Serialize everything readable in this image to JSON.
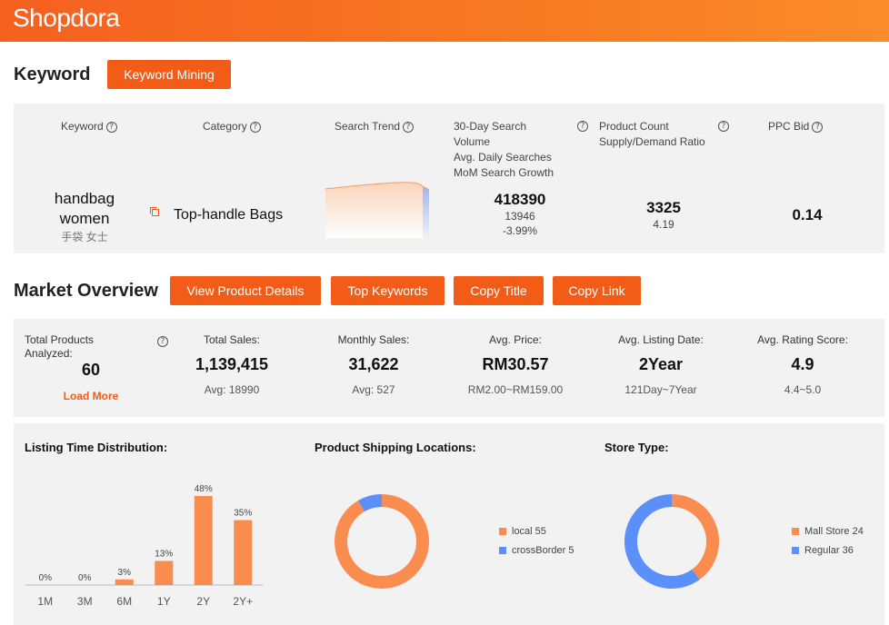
{
  "app": {
    "logo_text": "Shopdora"
  },
  "keyword_section": {
    "title": "Keyword",
    "mining_button": "Keyword Mining",
    "headers": {
      "keyword": "Keyword",
      "category": "Category",
      "search_trend": "Search Trend",
      "volume_line1": "30-Day Search",
      "volume_line2": "Volume",
      "volume_line3": "Avg. Daily Searches",
      "volume_line4": "MoM Search Growth",
      "product_count": "Product Count",
      "supply_demand": "Supply/Demand Ratio",
      "ppc_bid": "PPC Bid"
    },
    "row": {
      "keyword_line1": "handbag",
      "keyword_line2": "women",
      "keyword_translation": "手袋 女士",
      "category": "Top-handle Bags",
      "search_volume": "418390",
      "avg_daily_searches": "13946",
      "mom_growth": "-3.99%",
      "product_count": "3325",
      "supply_demand_ratio": "4.19",
      "ppc_bid": "0.14"
    }
  },
  "market_overview": {
    "title": "Market Overview",
    "buttons": {
      "view_details": "View Product Details",
      "top_keywords": "Top Keywords",
      "copy_title": "Copy Title",
      "copy_link": "Copy Link"
    },
    "total_products": {
      "label_line1": "Total Products",
      "label_line2": "Analyzed:",
      "value": "60",
      "load_more": "Load More"
    },
    "stats": [
      {
        "label": "Total Sales:",
        "value": "1,139,415",
        "sub": "Avg: 18990"
      },
      {
        "label": "Monthly Sales:",
        "value": "31,622",
        "sub": "Avg: 527"
      },
      {
        "label": "Avg. Price:",
        "value": "RM30.57",
        "sub": "RM2.00~RM159.00"
      },
      {
        "label": "Avg. Listing Date:",
        "value": "2Year",
        "sub": "121Day~7Year"
      },
      {
        "label": "Avg. Rating Score:",
        "value": "4.9",
        "sub": "4.4~5.0"
      }
    ]
  },
  "colors": {
    "accent": "#f25c17",
    "chart_orange": "#fa8c50",
    "chart_blue": "#5b8ff9"
  },
  "chart_data": [
    {
      "type": "bar",
      "title": "Listing Time Distribution:",
      "categories": [
        "1M",
        "3M",
        "6M",
        "1Y",
        "2Y",
        "2Y+"
      ],
      "values": [
        0,
        0,
        3,
        13,
        48,
        35
      ],
      "value_labels": [
        "0%",
        "0%",
        "3%",
        "13%",
        "48%",
        "35%"
      ],
      "unit": "%"
    },
    {
      "type": "pie",
      "title": "Product Shipping Locations:",
      "slices": [
        {
          "label": "local",
          "value": 55,
          "legend": "local 55",
          "color": "#fa8c50"
        },
        {
          "label": "crossBorder",
          "value": 5,
          "legend": "crossBorder 5",
          "color": "#5b8ff9"
        }
      ]
    },
    {
      "type": "pie",
      "title": "Store Type:",
      "slices": [
        {
          "label": "Mall Store",
          "value": 24,
          "legend": "Mall Store 24",
          "color": "#fa8c50"
        },
        {
          "label": "Regular",
          "value": 36,
          "legend": "Regular 36",
          "color": "#5b8ff9"
        }
      ]
    }
  ]
}
